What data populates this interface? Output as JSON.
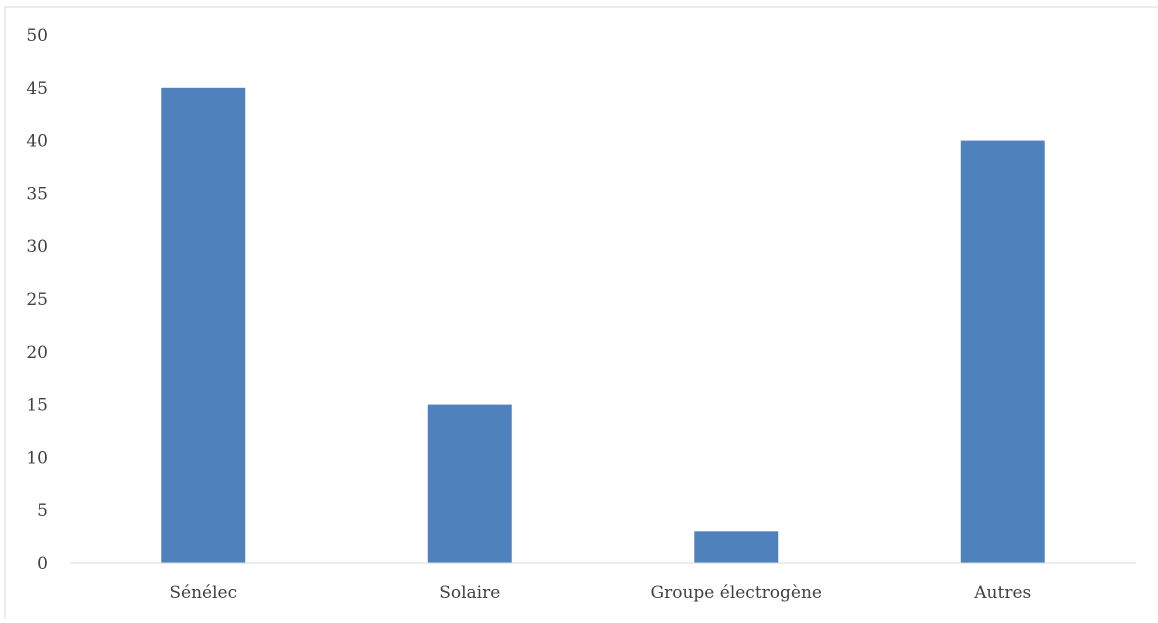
{
  "chart_data": {
    "type": "bar",
    "title": "",
    "xlabel": "",
    "ylabel": "",
    "categories": [
      "Sénélec",
      "Solaire",
      "Groupe électrogène",
      "Autres"
    ],
    "values": [
      45,
      15,
      3,
      40
    ],
    "ylim": [
      0,
      50
    ],
    "yticks": [
      "0",
      "5",
      "10",
      "15",
      "20",
      "25",
      "30",
      "35",
      "40",
      "45",
      "50"
    ],
    "grid": false,
    "legend": "none",
    "bar_color": "#4f81bd",
    "axis_color": "#d9d9d9",
    "frame_color": "#d9d9d9"
  }
}
